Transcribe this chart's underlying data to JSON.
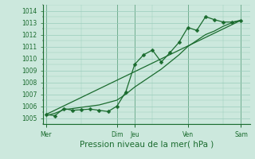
{
  "xlabel": "Pression niveau de la mer( hPa )",
  "bg_color": "#cce8dd",
  "grid_color": "#99ccbb",
  "line_color": "#1a6b2e",
  "vline_color": "#336644",
  "ylim": [
    1004.5,
    1014.5
  ],
  "yticks": [
    1005,
    1006,
    1007,
    1008,
    1009,
    1010,
    1011,
    1012,
    1013,
    1014
  ],
  "day_labels": [
    "Mer",
    "Dim",
    "Jeu",
    "Ven",
    "Sam"
  ],
  "day_positions": [
    0.0,
    8.0,
    10.0,
    16.0,
    22.0
  ],
  "vline_positions": [
    0.0,
    8.0,
    10.0,
    16.0,
    22.0
  ],
  "xlim": [
    -0.3,
    23.0
  ],
  "line1_x": [
    0,
    1,
    2,
    3,
    4,
    5,
    6,
    7,
    8,
    9,
    10,
    11,
    12,
    13,
    14,
    15,
    16,
    17,
    18,
    19,
    20,
    21,
    22
  ],
  "line1_y": [
    1005.3,
    1005.2,
    1005.8,
    1005.65,
    1005.7,
    1005.75,
    1005.65,
    1005.55,
    1006.0,
    1007.2,
    1009.5,
    1010.3,
    1010.7,
    1009.7,
    1010.5,
    1011.35,
    1012.6,
    1012.35,
    1013.5,
    1013.25,
    1013.05,
    1013.05,
    1013.2
  ],
  "line2_x": [
    0,
    1,
    2,
    3,
    4,
    5,
    6,
    7,
    8,
    9,
    10,
    11,
    12,
    13,
    14,
    15,
    16,
    17,
    18,
    19,
    20,
    21,
    22
  ],
  "line2_y": [
    1005.2,
    1005.4,
    1005.7,
    1005.8,
    1005.9,
    1006.0,
    1006.1,
    1006.3,
    1006.5,
    1007.0,
    1007.6,
    1008.1,
    1008.6,
    1009.1,
    1009.7,
    1010.3,
    1011.0,
    1011.5,
    1012.0,
    1012.3,
    1012.7,
    1013.0,
    1013.2
  ],
  "line3_x": [
    0,
    22
  ],
  "line3_y": [
    1005.3,
    1013.2
  ],
  "marker_size": 2.5,
  "line_width": 0.9,
  "tick_fontsize": 5.5,
  "xlabel_fontsize": 7.5
}
